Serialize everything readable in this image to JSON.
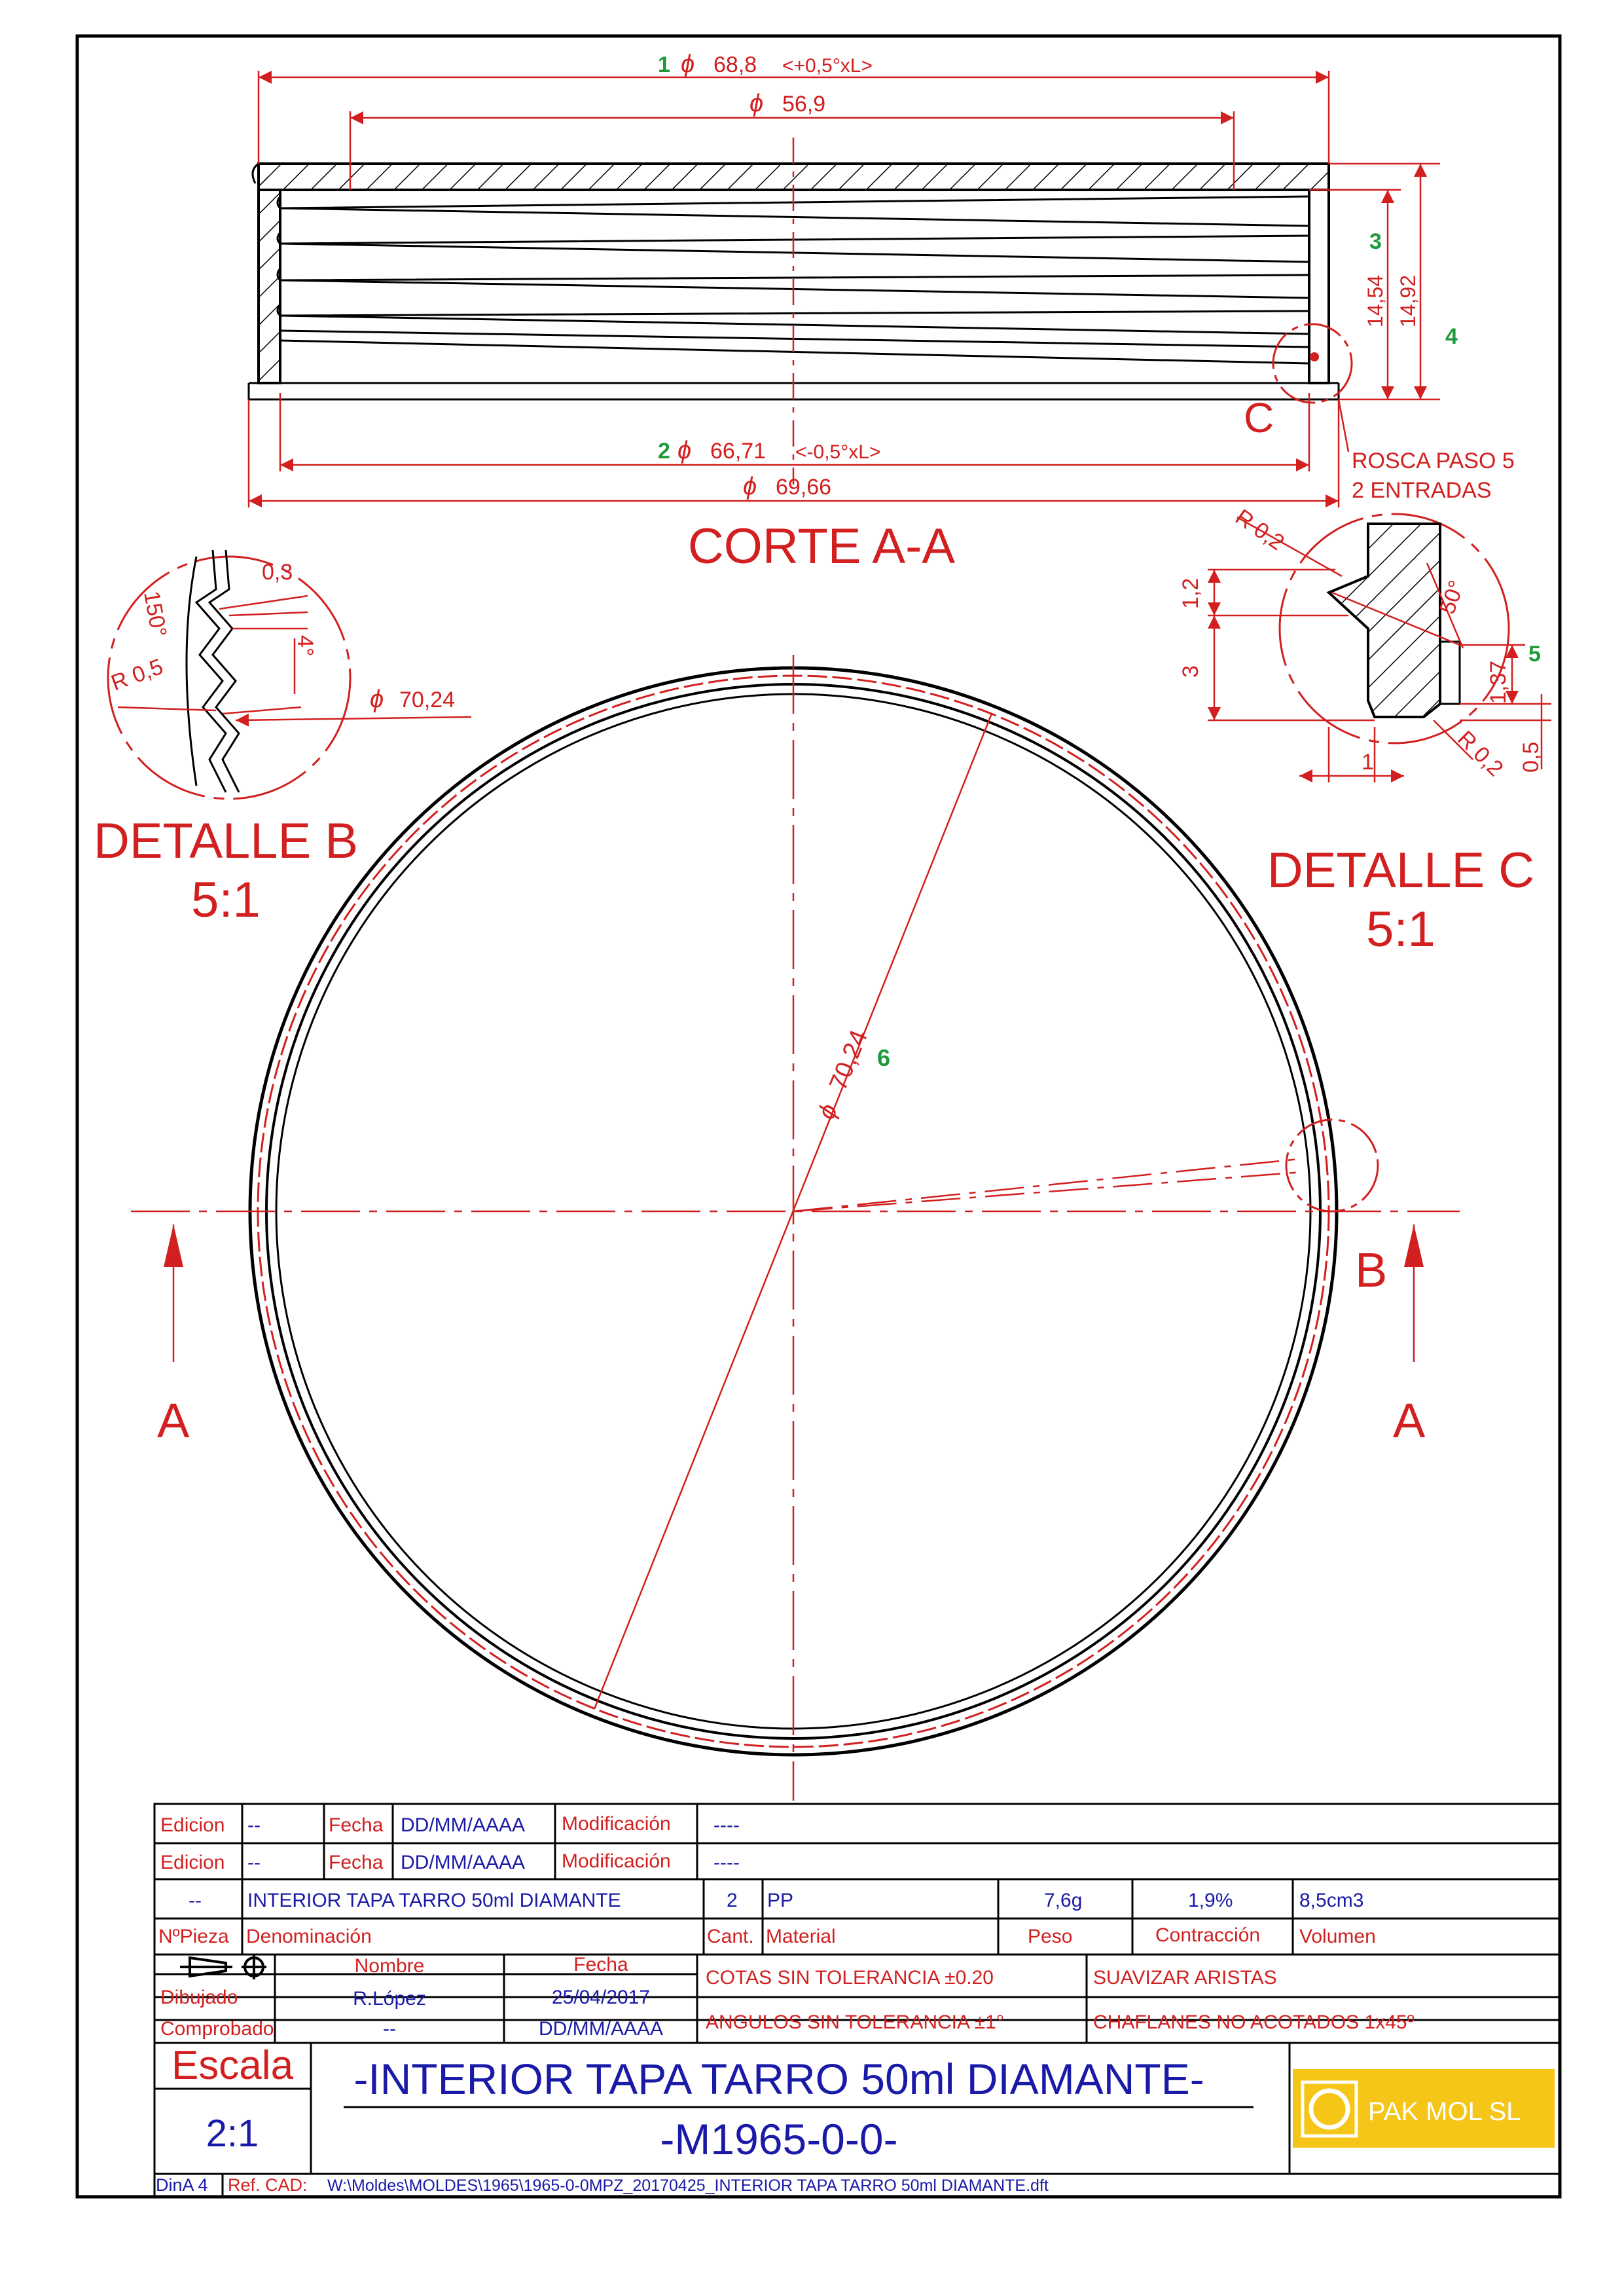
{
  "section": {
    "title": "CORTE A-A",
    "dim_outer_top": "68,8",
    "dim_outer_top_tol": "<+0,5°xL>",
    "dim_outer_top_num": "1",
    "dim_inner_top": "56,9",
    "dim_bottom_1": "66,71",
    "dim_bottom_1_tol": "<-0,5°xL>",
    "dim_bottom_1_num": "2",
    "dim_bottom_2": "69,66",
    "dim_h1": "14,54",
    "dim_h1_num": "3",
    "dim_h2": "14,92",
    "dim_h2_num": "4",
    "detail_c_marker": "C",
    "thread_note_1": "ROSCA PASO 5",
    "thread_note_2": "2 ENTRADAS",
    "diameter_symbol": "ϕ"
  },
  "detail_b": {
    "title": "DETALLE B",
    "scale": "5:1",
    "dim_depth": "0,3",
    "dim_angle_1": "150°",
    "dim_angle_2": "4°",
    "dim_radius": "R 0,5",
    "dim_diameter": "70,24"
  },
  "detail_c": {
    "title": "DETALLE C",
    "scale": "5:1",
    "dim_r_top": "R 0,2",
    "dim_angle": "50°",
    "dim_1_2": "1,2",
    "dim_3": "3",
    "dim_1_37": "1,37",
    "dim_1_37_num": "5",
    "dim_0_5": "0,5",
    "dim_1": "1",
    "dim_r_bottom": "R 0,2"
  },
  "plan_view": {
    "diameter": "70,24",
    "diameter_num": "6",
    "section_label_left": "A",
    "section_label_right": "A",
    "detail_b_marker": "B"
  },
  "title_block": {
    "rev_rows": [
      {
        "edicion_label": "Edicion",
        "edicion": "--",
        "fecha_label": "Fecha",
        "fecha": "DD/MM/AAAA",
        "mod_label": "Modificación",
        "mod": "----"
      },
      {
        "edicion_label": "Edicion",
        "edicion": "--",
        "fecha_label": "Fecha",
        "fecha": "DD/MM/AAAA",
        "mod_label": "Modificación",
        "mod": "----"
      }
    ],
    "part": {
      "numero": "--",
      "denominacion": "INTERIOR TAPA TARRO 50ml DIAMANTE",
      "cantidad": "2",
      "material": "PP",
      "peso": "7,6g",
      "contraccion": "1,9%",
      "volumen": "8,5cm3"
    },
    "headers": {
      "numero": "NºPieza",
      "denominacion": "Denominación",
      "cantidad": "Cant.",
      "material": "Material",
      "peso": "Peso",
      "contraccion": "Contracción",
      "volumen": "Volumen"
    },
    "sign": {
      "nombre_label": "Nombre",
      "fecha_label": "Fecha",
      "dibujado_label": "Dibujado",
      "dibujado_nombre": "R.López",
      "dibujado_fecha": "25/04/2017",
      "comprobado_label": "Comprobado",
      "comprobado_nombre": "--",
      "comprobado_fecha": "DD/MM/AAAA"
    },
    "notes": {
      "cotas": "COTAS SIN TOLERANCIA ±0.20",
      "angulos": "ANGULOS SIN TOLERANCIA ±1°",
      "aristas": "SUAVIZAR ARISTAS",
      "chaflanes": "CHAFLANES NO ACOTADOS 1x45º"
    },
    "escala_label": "Escala",
    "escala_value": "2:1",
    "main_title": "-INTERIOR TAPA TARRO 50ml DIAMANTE-",
    "drawing_number": "-M1965-0-0-",
    "logo_text": "PAK MOL SL",
    "sheet_format": "DinA 4",
    "ref_label": "Ref. CAD:",
    "ref_path": "W:\\Moldes\\MOLDES\\1965\\1965-0-0MPZ_20170425_INTERIOR TAPA TARRO 50ml DIAMANTE.dft"
  },
  "colors": {
    "line": "#000000",
    "red": "#d21f1f",
    "blue": "#1a1aa8",
    "green": "#1f9a3a",
    "logo_bg": "#f5c518"
  }
}
